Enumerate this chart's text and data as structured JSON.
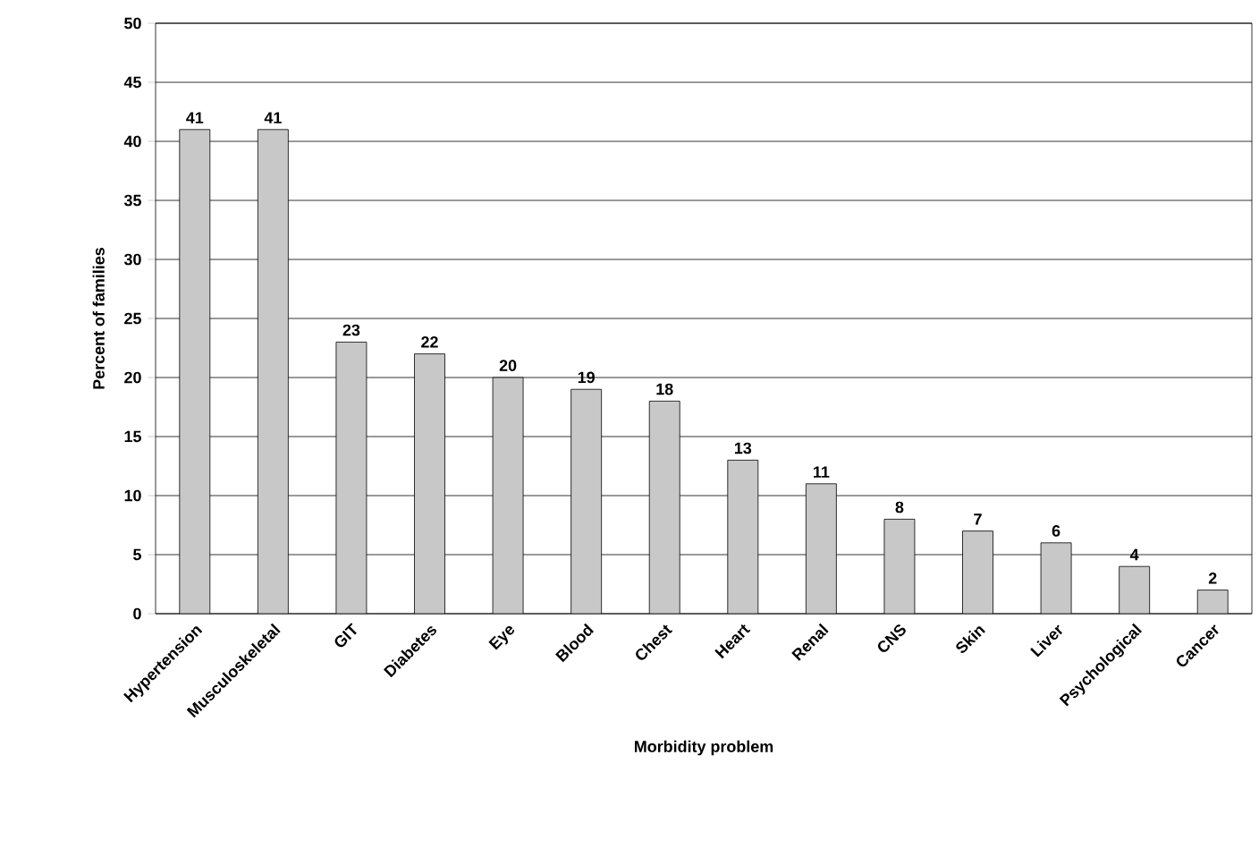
{
  "chart_data": {
    "type": "bar",
    "xlabel": "Morbidity problem",
    "ylabel": "Percent of families",
    "categories": [
      "Hypertension",
      "Musculoskeletal",
      "GIT",
      "Diabetes",
      "Eye",
      "Blood",
      "Chest",
      "Heart",
      "Renal",
      "CNS",
      "Skin",
      "Liver",
      "Psychological",
      "Cancer"
    ],
    "values": [
      41,
      41,
      23,
      22,
      20,
      19,
      18,
      13,
      11,
      8,
      7,
      6,
      4,
      2
    ],
    "color": "#c8c8c8",
    "ylim": [
      0,
      50
    ],
    "yticks": [
      0,
      5,
      10,
      15,
      20,
      25,
      30,
      35,
      40,
      45,
      50
    ],
    "grid": "y",
    "data_labels": true
  }
}
